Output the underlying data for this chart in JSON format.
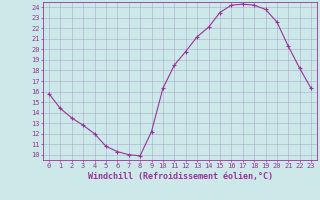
{
  "x": [
    0,
    1,
    2,
    3,
    4,
    5,
    6,
    7,
    8,
    9,
    10,
    11,
    12,
    13,
    14,
    15,
    16,
    17,
    18,
    19,
    20,
    21,
    22,
    23
  ],
  "y": [
    15.8,
    14.4,
    13.5,
    12.8,
    12.0,
    10.8,
    10.3,
    10.0,
    9.9,
    12.2,
    16.3,
    18.5,
    19.8,
    21.2,
    22.1,
    23.5,
    24.2,
    24.3,
    24.2,
    23.8,
    22.6,
    20.3,
    18.2,
    16.3
  ],
  "xlabel": "Windchill (Refroidissement éolien,°C)",
  "ylim": [
    9.5,
    24.5
  ],
  "xlim": [
    -0.5,
    23.5
  ],
  "line_color": "#993399",
  "marker": "+",
  "bg_color": "#cce8e8",
  "grid_color": "#aaaacc",
  "label_color": "#993399",
  "tick_fontsize": 5.0,
  "xlabel_fontsize": 6.0
}
